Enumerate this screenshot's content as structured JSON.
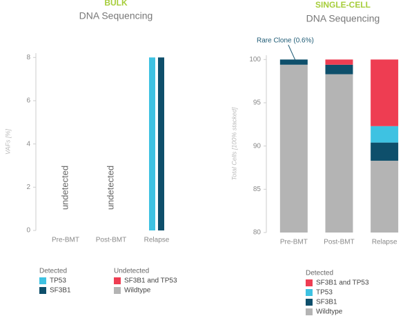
{
  "chart_data": [
    {
      "type": "bar",
      "title": "BULK",
      "subtitle": "DNA Sequencing",
      "y_label": "VAFs [%]",
      "categories": [
        "Pre-BMT",
        "Post-BMT",
        "Relapse"
      ],
      "ylim": [
        0,
        8.2
      ],
      "yticks": [
        0,
        2,
        4,
        6,
        8
      ],
      "annotations": [
        "undetected",
        "undetected"
      ],
      "series_groups": [
        {
          "name": "Detected",
          "series": [
            {
              "name": "TP53",
              "color": "#3ec2e2",
              "values": [
                null,
                null,
                8
              ]
            },
            {
              "name": "SF3B1",
              "color": "#0e4f6b",
              "values": [
                null,
                null,
                8
              ]
            }
          ]
        },
        {
          "name": "Undetected",
          "series": [
            {
              "name": "SF3B1 and TP53",
              "color": "#ee3d52",
              "values": [
                null,
                null,
                null
              ]
            },
            {
              "name": "Wildtype",
              "color": "#b4b4b4",
              "values": [
                null,
                null,
                null
              ]
            }
          ]
        }
      ]
    },
    {
      "type": "stacked_bar",
      "title": "SINGLE-CELL",
      "subtitle": "DNA Sequencing",
      "y_label": "Total Cells [100% stacked]",
      "categories": [
        "Pre-BMT",
        "Post-BMT",
        "Relapse"
      ],
      "ylim": [
        80,
        100.5
      ],
      "yticks": [
        80,
        85,
        90,
        95,
        100
      ],
      "annotations": [
        "Rare Clone (0.6%)"
      ],
      "series_groups": [
        {
          "name": "Detected",
          "series": [
            {
              "name": "SF3B1 and TP53",
              "color": "#ee3d52",
              "values": [
                0,
                0.6,
                7.7
              ]
            },
            {
              "name": "TP53",
              "color": "#3ec2e2",
              "values": [
                0,
                0,
                1.9
              ]
            },
            {
              "name": "SF3B1",
              "color": "#0e4f6b",
              "values": [
                0.6,
                1.1,
                2.1
              ]
            },
            {
              "name": "Wildtype",
              "color": "#b4b4b4",
              "values": [
                99.4,
                98.3,
                88.3
              ]
            }
          ]
        }
      ]
    }
  ]
}
